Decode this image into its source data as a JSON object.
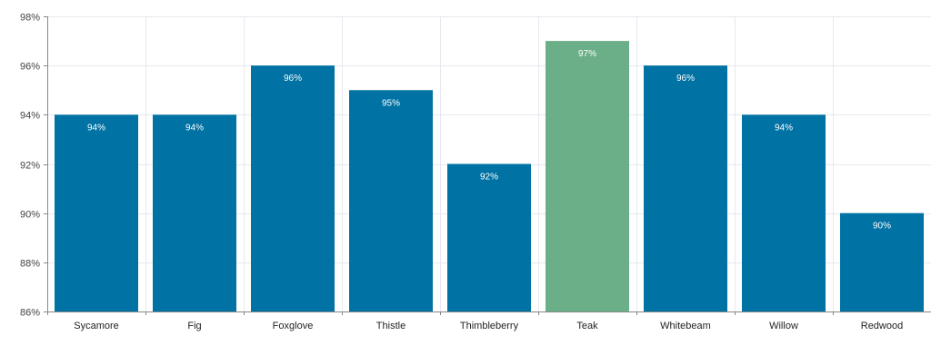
{
  "chart_data": {
    "type": "bar",
    "title": "",
    "xlabel": "",
    "ylabel": "",
    "categories": [
      "Sycamore",
      "Fig",
      "Foxglove",
      "Thistle",
      "Thimbleberry",
      "Teak",
      "Whitebeam",
      "Willow",
      "Redwood"
    ],
    "values": [
      94,
      94,
      96,
      95,
      92,
      97,
      96,
      94,
      90
    ],
    "value_labels": [
      "94%",
      "94%",
      "96%",
      "95%",
      "92%",
      "97%",
      "96%",
      "94%",
      "90%"
    ],
    "ylim": [
      86,
      98
    ],
    "y_ticks": [
      86,
      88,
      90,
      92,
      94,
      96,
      98
    ],
    "y_tick_labels": [
      "86%",
      "88%",
      "90%",
      "92%",
      "94%",
      "96%",
      "98%"
    ],
    "grid": true,
    "highlight_category": "Teak",
    "colors": {
      "bar": "#0072a3",
      "highlight": "#6aaf87",
      "grid": "#e6e9ef",
      "axis": "#888888"
    }
  }
}
